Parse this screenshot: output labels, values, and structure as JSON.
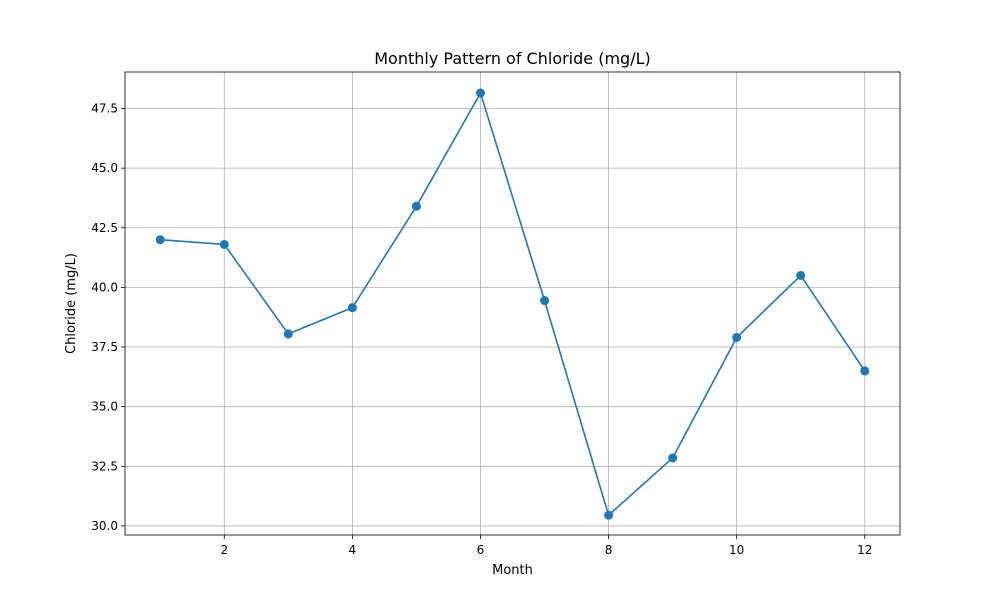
{
  "chart_data": {
    "type": "line",
    "title": "Monthly Pattern of Chloride (mg/L)",
    "xlabel": "Month",
    "ylabel": "Chloride (mg/L)",
    "xlim": [
      0.45,
      12.55
    ],
    "ylim": [
      29.62,
      49.03
    ],
    "xticks": [
      2,
      4,
      6,
      8,
      10,
      12
    ],
    "xtick_labels": [
      "2",
      "4",
      "6",
      "8",
      "10",
      "12"
    ],
    "yticks": [
      30.0,
      32.5,
      35.0,
      37.5,
      40.0,
      42.5,
      45.0,
      47.5
    ],
    "ytick_labels": [
      "30.0",
      "32.5",
      "35.0",
      "37.5",
      "40.0",
      "42.5",
      "45.0",
      "47.5"
    ],
    "grid": true,
    "series": [
      {
        "color": "#1f77b4",
        "marker": "circle",
        "x": [
          1,
          2,
          3,
          4,
          5,
          6,
          7,
          8,
          9,
          10,
          11,
          12
        ],
        "y": [
          42.0,
          41.8,
          38.05,
          39.15,
          43.4,
          48.15,
          39.45,
          30.45,
          32.85,
          37.9,
          40.5,
          36.5
        ]
      }
    ]
  }
}
